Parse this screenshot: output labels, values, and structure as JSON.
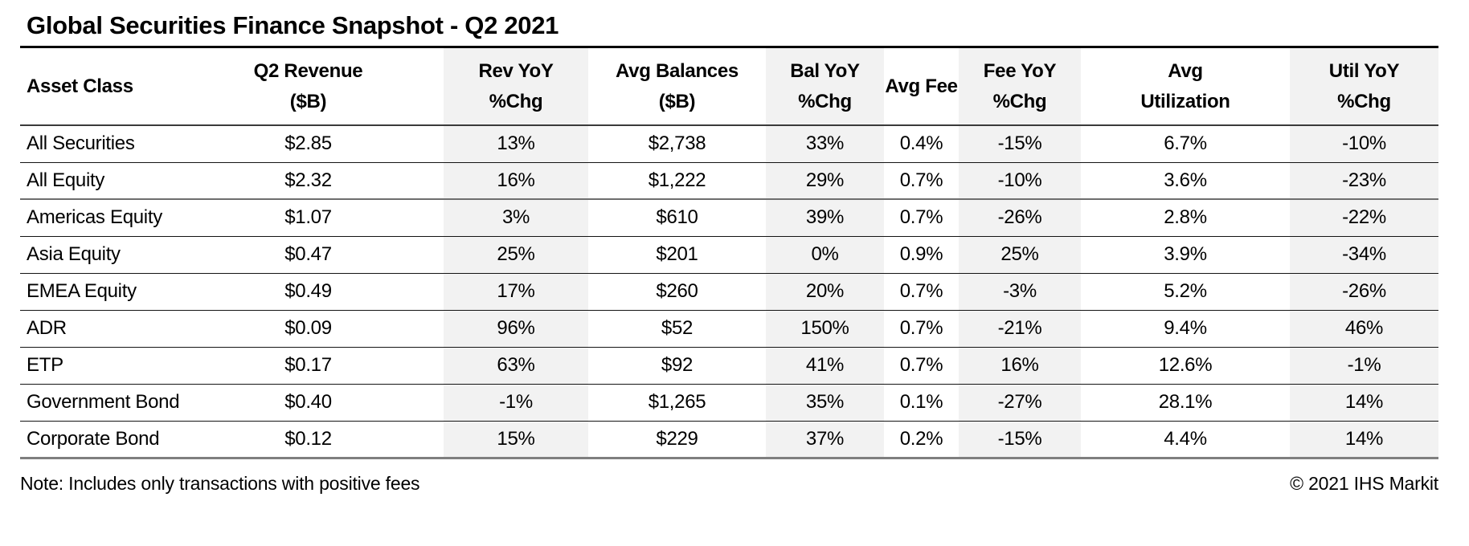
{
  "page_title": "Global Securities Finance Snapshot - Q2 2021",
  "chart_data": {
    "type": "table",
    "title": "Global Securities Finance Snapshot - Q2 2021",
    "columns": [
      {
        "id": "asset-class",
        "line1": "Asset Class",
        "line2": ""
      },
      {
        "id": "q2-revenue",
        "line1": "Q2 Revenue",
        "line2": "($B)"
      },
      {
        "id": "rev-yoy",
        "line1": "Rev YoY",
        "line2": "%Chg"
      },
      {
        "id": "avg-balances",
        "line1": "Avg Balances",
        "line2": "($B)"
      },
      {
        "id": "bal-yoy",
        "line1": "Bal YoY",
        "line2": "%Chg"
      },
      {
        "id": "avg-fee",
        "line1": "Avg Fee",
        "line2": ""
      },
      {
        "id": "fee-yoy",
        "line1": "Fee YoY",
        "line2": "%Chg"
      },
      {
        "id": "avg-utilization",
        "line1": "Avg",
        "line2": "Utilization"
      },
      {
        "id": "util-yoy",
        "line1": "Util YoY",
        "line2": "%Chg"
      }
    ],
    "rows": [
      [
        "All Securities",
        "$2.85",
        "13%",
        "$2,738",
        "33%",
        "0.4%",
        "-15%",
        "6.7%",
        "-10%"
      ],
      [
        "All Equity",
        "$2.32",
        "16%",
        "$1,222",
        "29%",
        "0.7%",
        "-10%",
        "3.6%",
        "-23%"
      ],
      [
        "Americas Equity",
        "$1.07",
        "3%",
        "$610",
        "39%",
        "0.7%",
        "-26%",
        "2.8%",
        "-22%"
      ],
      [
        "Asia Equity",
        "$0.47",
        "25%",
        "$201",
        "0%",
        "0.9%",
        "25%",
        "3.9%",
        "-34%"
      ],
      [
        "EMEA Equity",
        "$0.49",
        "17%",
        "$260",
        "20%",
        "0.7%",
        "-3%",
        "5.2%",
        "-26%"
      ],
      [
        "ADR",
        "$0.09",
        "96%",
        "$52",
        "150%",
        "0.7%",
        "-21%",
        "9.4%",
        "46%"
      ],
      [
        "ETP",
        "$0.17",
        "63%",
        "$92",
        "41%",
        "0.7%",
        "16%",
        "12.6%",
        "-1%"
      ],
      [
        "Government Bond",
        "$0.40",
        "-1%",
        "$1,265",
        "35%",
        "0.1%",
        "-27%",
        "28.1%",
        "14%"
      ],
      [
        "Corporate Bond",
        "$0.12",
        "15%",
        "$229",
        "37%",
        "0.2%",
        "-15%",
        "4.4%",
        "14%"
      ]
    ],
    "shaded_column_indexes": [
      2,
      4,
      6,
      8
    ],
    "thick_divider_after_row_index": 1,
    "layout_hints": {
      "grid": "horizontal-rules-only",
      "shading": "alternate-yoy-columns"
    }
  },
  "footer": {
    "note": "Note: Includes only transactions with positive fees",
    "copyright": "© 2021 IHS Markit"
  },
  "colors": {
    "background": "#ffffff",
    "text": "#000000",
    "shaded_column_bg": "#f2f2f2",
    "title_rule": "#000000",
    "row_rule": "#141414",
    "section_rule": "#6e6e6e"
  }
}
